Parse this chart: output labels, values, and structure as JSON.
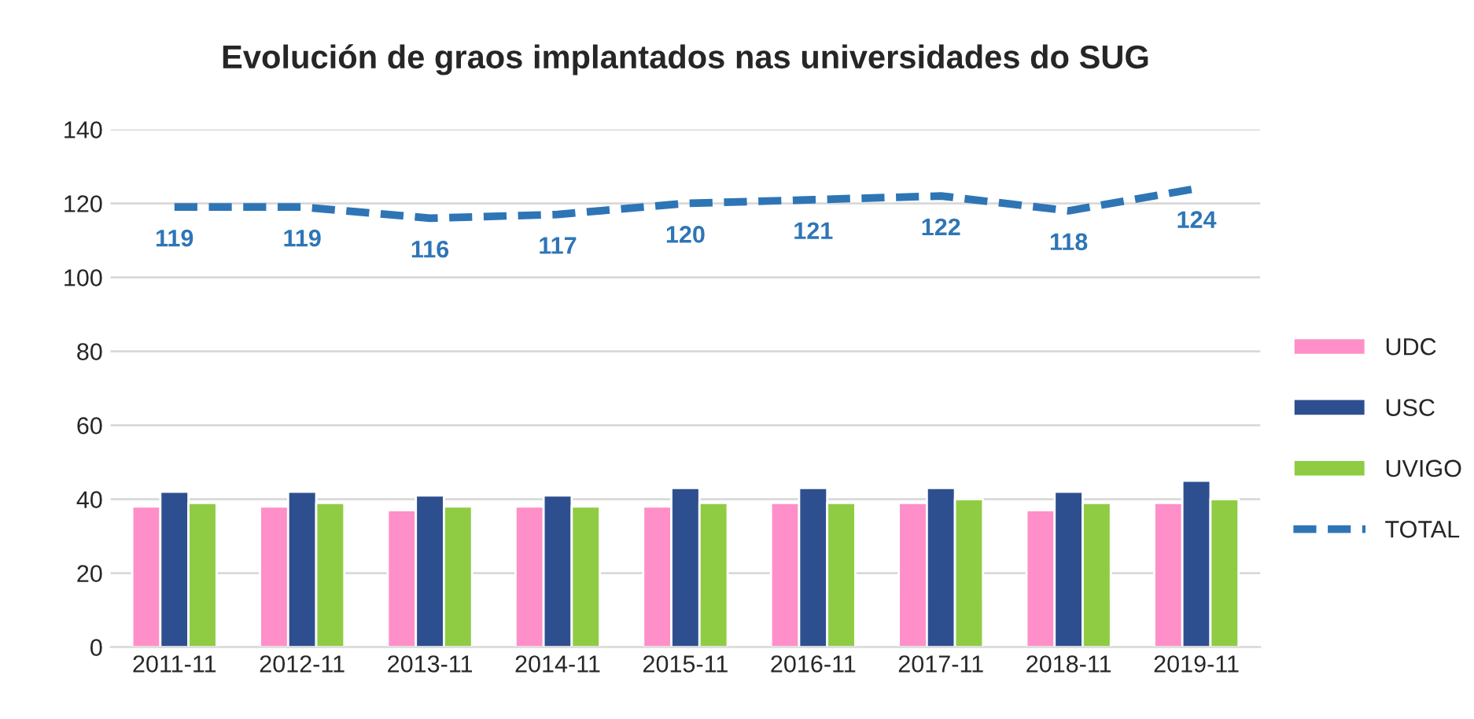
{
  "chart_data": {
    "type": "bar",
    "title": "Evolución de graos implantados nas universidades do SUG",
    "categories": [
      "2011-11",
      "2012-11",
      "2013-11",
      "2014-11",
      "2015-11",
      "2016-11",
      "2017-11",
      "2018-11",
      "2019-11"
    ],
    "series": [
      {
        "name": "UDC",
        "color": "#ff8fc8",
        "values": [
          38,
          38,
          37,
          38,
          38,
          39,
          39,
          37,
          39
        ]
      },
      {
        "name": "USC",
        "color": "#2e4f8f",
        "values": [
          42,
          42,
          41,
          41,
          43,
          43,
          43,
          42,
          45
        ]
      },
      {
        "name": "UVIGO",
        "color": "#8fcc44",
        "values": [
          39,
          39,
          38,
          38,
          39,
          39,
          40,
          39,
          40
        ]
      },
      {
        "name": "TOTAL",
        "type": "line",
        "line_style": "dashed",
        "data_labels": true,
        "color": "#2e75b6",
        "values": [
          119,
          119,
          116,
          117,
          120,
          121,
          122,
          118,
          124
        ]
      }
    ],
    "ylim": [
      0,
      140
    ],
    "yticks": [
      0,
      20,
      40,
      60,
      80,
      100,
      120,
      140
    ],
    "grid": "y",
    "legend": "right"
  }
}
